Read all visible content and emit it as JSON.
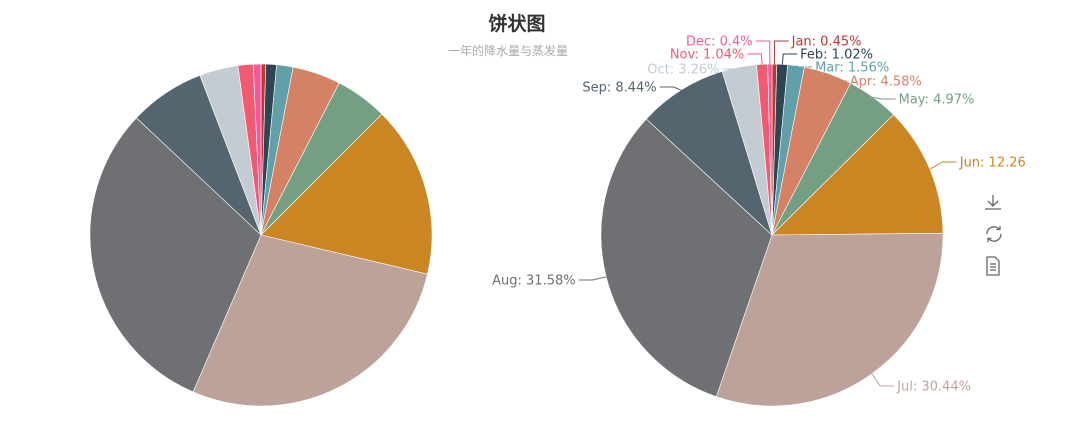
{
  "title": "饼状图",
  "subtitle": "一年的降水量与蒸发量",
  "toolbox": {
    "items": [
      {
        "icon": "download-icon"
      },
      {
        "icon": "refresh-icon"
      },
      {
        "icon": "data-view-icon"
      }
    ]
  },
  "chart_data": [
    {
      "type": "pie",
      "categories": [
        "Jan",
        "Feb",
        "Mar",
        "Apr",
        "May",
        "Jun",
        "Jul",
        "Aug",
        "Sep",
        "Oct",
        "Nov",
        "Dec"
      ],
      "values": [
        0.45,
        1.02,
        1.56,
        4.58,
        4.97,
        16.27,
        27.99,
        30.69,
        7.22,
        3.68,
        1.44,
        0.73
      ],
      "colors": [
        "#c23531",
        "#2f4554",
        "#61a0a8",
        "#d48265",
        "#749f83",
        "#ca8622",
        "#bda29a",
        "#6e7074",
        "#546570",
        "#c4ccd3",
        "#f05b72",
        "#ef5b9c"
      ],
      "labels_shown": false
    },
    {
      "type": "pie",
      "categories": [
        "Jan",
        "Feb",
        "Mar",
        "Apr",
        "May",
        "Jun",
        "Jul",
        "Aug",
        "Sep",
        "Oct",
        "Nov",
        "Dec"
      ],
      "values": [
        0.45,
        1.02,
        1.56,
        4.58,
        4.97,
        12.26,
        30.44,
        31.58,
        8.44,
        3.26,
        1.04,
        0.4
      ],
      "labels": [
        "Jan: 0.45%",
        "Feb: 1.02%",
        "Mar: 1.56%",
        "Apr: 4.58%",
        "May: 4.97%",
        "Jun: 12.26",
        "Jul: 30.44%",
        "Aug: 31.58%",
        "Sep: 8.44%",
        "Oct: 3.26%",
        "Nov: 1.04%",
        "Dec: 0.4%"
      ],
      "colors": [
        "#c23531",
        "#2f4554",
        "#61a0a8",
        "#d48265",
        "#749f83",
        "#ca8622",
        "#bda29a",
        "#6e7074",
        "#546570",
        "#c4ccd3",
        "#f05b72",
        "#ef5b9c"
      ],
      "labels_shown": true
    }
  ]
}
